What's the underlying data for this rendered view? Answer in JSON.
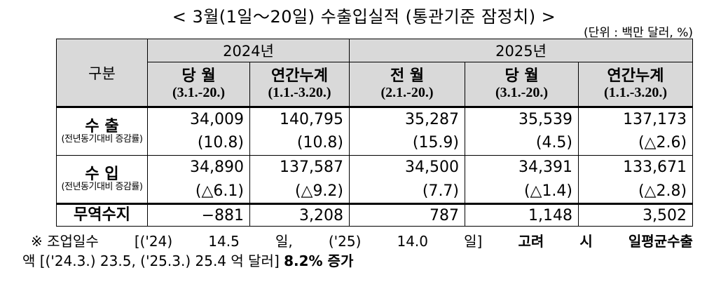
{
  "title": "< 3월(1일～20일) 수출입실적 (통관기준 잠정치) >",
  "unit": "(단위 : 백만 달러, %)",
  "header": {
    "category": "구분",
    "year_2024": "2024년",
    "year_2025": "2025년",
    "cols": [
      {
        "label": "당 월",
        "period": "(3.1.-20.)"
      },
      {
        "label": "연간누계",
        "period": "(1.1.-3.20.)"
      },
      {
        "label": "전 월",
        "period": "(2.1.-20.)"
      },
      {
        "label": "당 월",
        "period": "(3.1.-20.)"
      },
      {
        "label": "연간누계",
        "period": "(1.1.-3.20.)"
      }
    ]
  },
  "rows": {
    "export": {
      "label": "수  출",
      "sublabel": "(전년동기대비 증감률)",
      "values": [
        "34,009",
        "140,795",
        "35,287",
        "35,539",
        "137,173"
      ],
      "rates": [
        "(10.8)",
        "(10.8)",
        "(15.9)",
        "(4.5)",
        "(△2.6)"
      ]
    },
    "import": {
      "label": "수  입",
      "sublabel": "(전년동기대비 증감률)",
      "values": [
        "34,890",
        "137,587",
        "34,500",
        "34,391",
        "133,671"
      ],
      "rates": [
        "(△6.1)",
        "(△9.2)",
        "(7.7)",
        "(△1.4)",
        "(△2.8)"
      ]
    },
    "balance": {
      "label": "무역수지",
      "values": [
        "−881",
        "3,208",
        "787",
        "1,148",
        "3,502"
      ]
    }
  },
  "note": {
    "line1_parts": [
      "※ 조업일수",
      "[('24)",
      "14.5",
      "일,",
      "('25)",
      "14.0",
      "일]",
      "고려",
      "시",
      "일평균수출"
    ],
    "line2_prefix": "액 [('24.3.) 23.5, ('25.3.) 25.4 억 달러] ",
    "line2_bold": "8.2% 증가"
  }
}
